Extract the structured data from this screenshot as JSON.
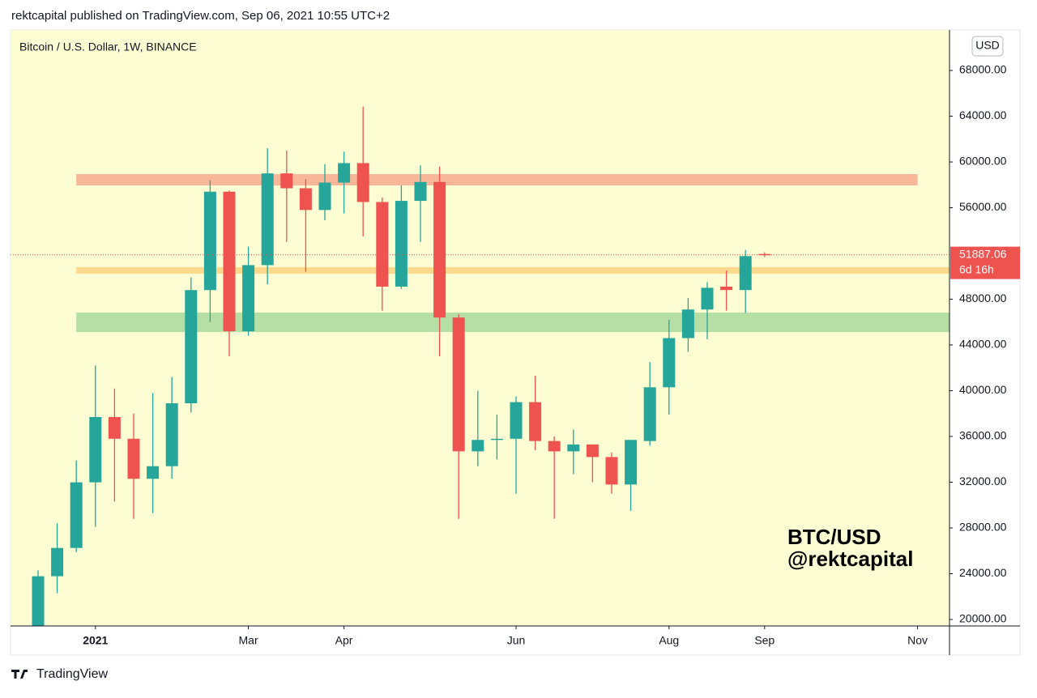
{
  "header": "rektcapital published on TradingView.com, Sep 06, 2021 10:55 UTC+2",
  "footer": "TradingView",
  "chart_data": {
    "type": "candlestick",
    "title": "Bitcoin / U.S. Dollar, 1W, BINANCE",
    "currency": "USD",
    "annotations": [
      "BTC/USD",
      "@rektcapital"
    ],
    "up_color": "#26a69a",
    "down_color": "#ef5350",
    "open": [
      19270,
      23780,
      26250,
      31990,
      37700,
      35800,
      32300,
      33400,
      38900,
      48800,
      57400,
      45200,
      50980,
      59000,
      57700,
      55800,
      58200,
      59900,
      56500,
      49100,
      56600,
      58250,
      46400,
      34700,
      35700,
      35800,
      39000,
      35600,
      34700,
      35300,
      34200,
      31800,
      35600,
      40300,
      44600,
      47100,
      49100,
      48800,
      51950
    ],
    "high": [
      24300,
      28400,
      33900,
      42200,
      40200,
      38000,
      39800,
      41200,
      49900,
      58400,
      57500,
      52600,
      61200,
      61000,
      58500,
      59800,
      60900,
      64850,
      56900,
      57950,
      59700,
      59600,
      46700,
      40000,
      37900,
      39500,
      41300,
      36000,
      36600,
      35300,
      34600,
      35600,
      42500,
      46200,
      48100,
      49500,
      50500,
      52300,
      52100
    ],
    "low": [
      19000,
      22300,
      25900,
      28100,
      30300,
      28800,
      29300,
      32300,
      38100,
      46000,
      43000,
      44800,
      49300,
      53000,
      50400,
      54900,
      55500,
      53500,
      47000,
      48900,
      53000,
      43000,
      28800,
      33400,
      34000,
      31000,
      34800,
      28800,
      32700,
      32000,
      31000,
      29500,
      35200,
      37900,
      43400,
      44500,
      47000,
      46800,
      51700
    ],
    "close": [
      23780,
      26250,
      31990,
      37700,
      35800,
      32300,
      33400,
      38900,
      48800,
      57400,
      45200,
      50980,
      59000,
      57700,
      55800,
      58200,
      59900,
      56500,
      49100,
      56600,
      58250,
      46400,
      34700,
      35700,
      35800,
      39000,
      35600,
      34700,
      35300,
      34200,
      31800,
      35700,
      40300,
      44600,
      47100,
      49000,
      48800,
      51770,
      51887.06
    ],
    "last_price": 51887.06,
    "last_price_label": "51887.06",
    "countdown": "6d 16h",
    "zones": [
      {
        "low": 57950,
        "high": 58940,
        "color": "#f9b79a"
      },
      {
        "low": 50230,
        "high": 50800,
        "color": "#fcd98c"
      },
      {
        "low": 45130,
        "high": 46830,
        "color": "#b5dfa4"
      }
    ],
    "xlim": [
      -1.44,
      47.67
    ],
    "xticks": [
      {
        "value": 3,
        "label": "2021"
      },
      {
        "value": 11,
        "label": "Mar"
      },
      {
        "value": 16,
        "label": "Apr"
      },
      {
        "value": 25,
        "label": "Jun"
      },
      {
        "value": 33,
        "label": "Aug"
      },
      {
        "value": 38,
        "label": "Sep"
      },
      {
        "value": 46,
        "label": "Nov"
      }
    ],
    "ylim": [
      19434,
      71542
    ],
    "yticks": [
      {
        "value": 20000,
        "label": "20000.00"
      },
      {
        "value": 24000,
        "label": "24000.00"
      },
      {
        "value": 28000,
        "label": "28000.00"
      },
      {
        "value": 32000,
        "label": "32000.00"
      },
      {
        "value": 36000,
        "label": "36000.00"
      },
      {
        "value": 40000,
        "label": "40000.00"
      },
      {
        "value": 44000,
        "label": "44000.00"
      },
      {
        "value": 48000,
        "label": "48000.00"
      },
      {
        "value": 56000,
        "label": "56000.00"
      },
      {
        "value": 60000,
        "label": "60000.00"
      },
      {
        "value": 64000,
        "label": "64000.00"
      },
      {
        "value": 68000,
        "label": "68000.00"
      }
    ]
  }
}
